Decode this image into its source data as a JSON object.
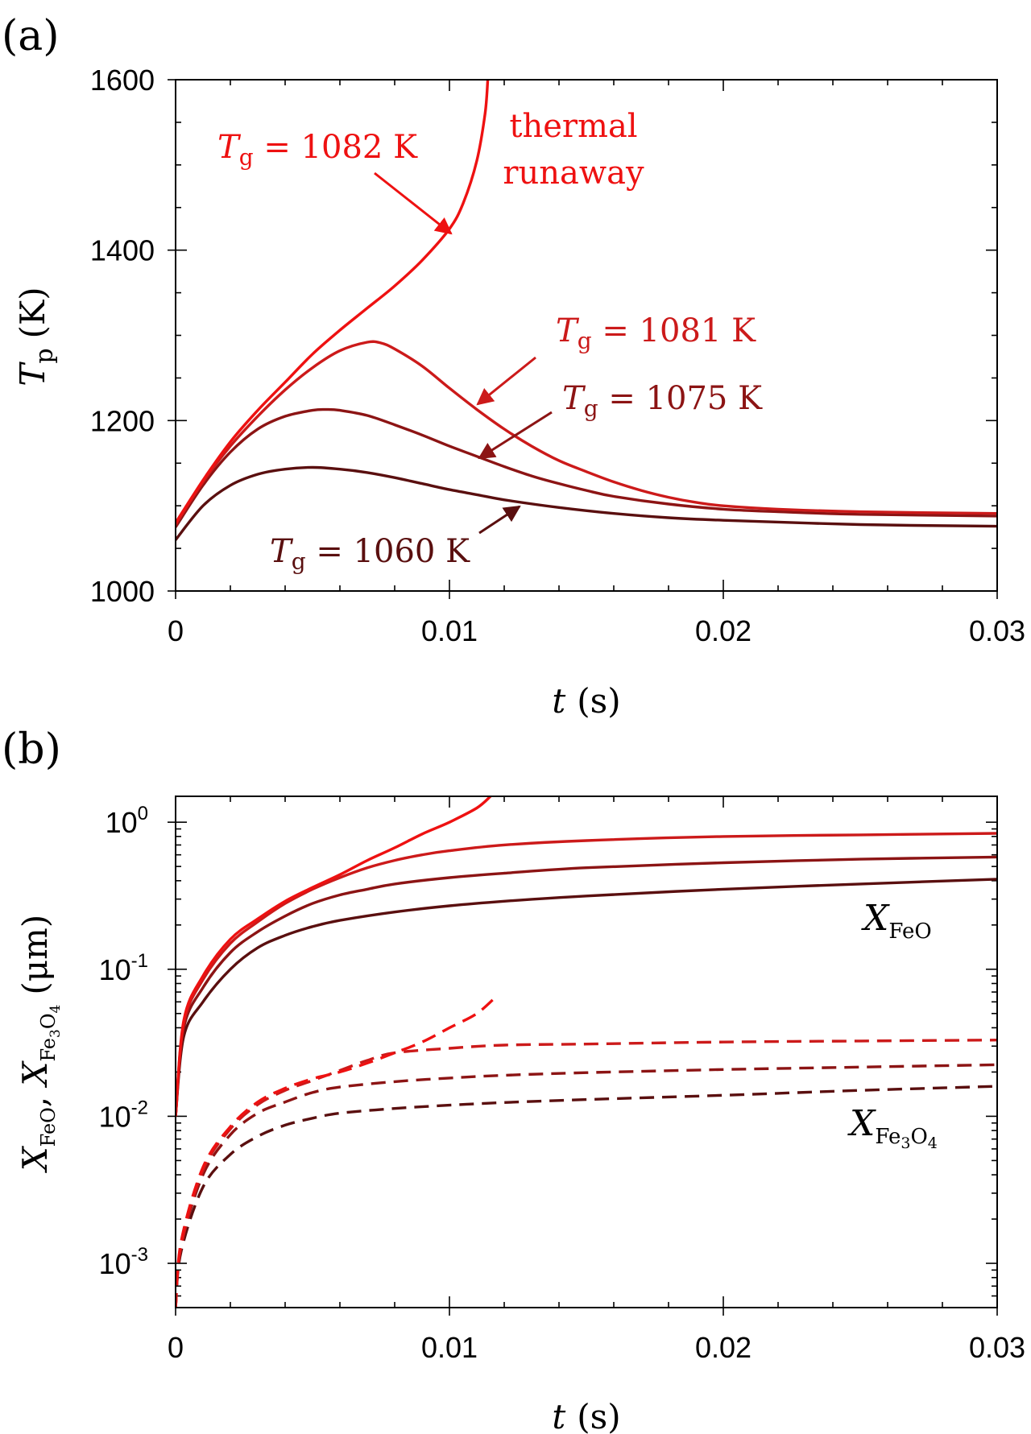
{
  "colors": {
    "Tg_1082": "#ee1111",
    "Tg_1081": "#cc1a1a",
    "Tg_1075": "#8c1414",
    "Tg_1060": "#5a0f0f",
    "axis": "#000000"
  },
  "chart_data": [
    {
      "panel_label": "(a)",
      "type": "line",
      "xlabel": {
        "var": "t",
        "unit": "(s)"
      },
      "ylabel": {
        "var": "T",
        "sub": "p",
        "unit": "(K)"
      },
      "xlim": [
        0,
        0.03
      ],
      "ylim": [
        1000,
        1600
      ],
      "xticks": [
        {
          "v": 0,
          "label": "0"
        },
        {
          "v": 0.01,
          "label": "0.01"
        },
        {
          "v": 0.02,
          "label": "0.02"
        },
        {
          "v": 0.03,
          "label": "0.03"
        }
      ],
      "yticks": [
        {
          "v": 1000,
          "label": "1000"
        },
        {
          "v": 1200,
          "label": "1200"
        },
        {
          "v": 1400,
          "label": "1400"
        },
        {
          "v": 1600,
          "label": "1600"
        }
      ],
      "series": [
        {
          "key": "Tg_1082",
          "points": [
            [
              0,
              1080
            ],
            [
              0.001,
              1130
            ],
            [
              0.002,
              1175
            ],
            [
              0.003,
              1212
            ],
            [
              0.004,
              1245
            ],
            [
              0.005,
              1278
            ],
            [
              0.006,
              1306
            ],
            [
              0.007,
              1332
            ],
            [
              0.008,
              1358
            ],
            [
              0.009,
              1388
            ],
            [
              0.01,
              1425
            ],
            [
              0.0105,
              1455
            ],
            [
              0.011,
              1505
            ],
            [
              0.0113,
              1560
            ],
            [
              0.0114,
              1600
            ]
          ]
        },
        {
          "key": "Tg_1081",
          "points": [
            [
              0,
              1078
            ],
            [
              0.001,
              1128
            ],
            [
              0.002,
              1170
            ],
            [
              0.003,
              1205
            ],
            [
              0.004,
              1236
            ],
            [
              0.005,
              1262
            ],
            [
              0.006,
              1282
            ],
            [
              0.007,
              1292
            ],
            [
              0.0075,
              1291
            ],
            [
              0.008,
              1284
            ],
            [
              0.009,
              1264
            ],
            [
              0.01,
              1238
            ],
            [
              0.011,
              1213
            ],
            [
              0.012,
              1190
            ],
            [
              0.013,
              1170
            ],
            [
              0.014,
              1153
            ],
            [
              0.015,
              1140
            ],
            [
              0.016,
              1128
            ],
            [
              0.017,
              1118
            ],
            [
              0.018,
              1110
            ],
            [
              0.019,
              1104
            ],
            [
              0.02,
              1100
            ],
            [
              0.022,
              1096
            ],
            [
              0.025,
              1093
            ],
            [
              0.03,
              1091
            ]
          ]
        },
        {
          "key": "Tg_1075",
          "points": [
            [
              0,
              1075
            ],
            [
              0.001,
              1124
            ],
            [
              0.002,
              1163
            ],
            [
              0.003,
              1190
            ],
            [
              0.004,
              1205
            ],
            [
              0.005,
              1212
            ],
            [
              0.0055,
              1213
            ],
            [
              0.006,
              1212
            ],
            [
              0.007,
              1206
            ],
            [
              0.008,
              1195
            ],
            [
              0.009,
              1183
            ],
            [
              0.01,
              1170
            ],
            [
              0.011,
              1158
            ],
            [
              0.012,
              1146
            ],
            [
              0.013,
              1135
            ],
            [
              0.014,
              1126
            ],
            [
              0.015,
              1118
            ],
            [
              0.016,
              1111
            ],
            [
              0.018,
              1102
            ],
            [
              0.02,
              1096
            ],
            [
              0.022,
              1093
            ],
            [
              0.025,
              1090
            ],
            [
              0.03,
              1088
            ]
          ]
        },
        {
          "key": "Tg_1060",
          "points": [
            [
              0,
              1060
            ],
            [
              0.001,
              1100
            ],
            [
              0.002,
              1124
            ],
            [
              0.003,
              1137
            ],
            [
              0.004,
              1143
            ],
            [
              0.005,
              1145
            ],
            [
              0.006,
              1143
            ],
            [
              0.007,
              1139
            ],
            [
              0.008,
              1133
            ],
            [
              0.009,
              1126
            ],
            [
              0.01,
              1119
            ],
            [
              0.011,
              1113
            ],
            [
              0.012,
              1107
            ],
            [
              0.014,
              1098
            ],
            [
              0.016,
              1091
            ],
            [
              0.018,
              1086
            ],
            [
              0.02,
              1083
            ],
            [
              0.025,
              1078
            ],
            [
              0.03,
              1076
            ]
          ]
        }
      ],
      "annotations": [
        {
          "key": "Tg_1082",
          "T": "T",
          "sub": "g",
          "rest": " = 1082 K"
        },
        {
          "key": "Tg_1081",
          "T": "T",
          "sub": "g",
          "rest": " = 1081 K"
        },
        {
          "key": "Tg_1075",
          "T": "T",
          "sub": "g",
          "rest": " = 1075 K"
        },
        {
          "key": "Tg_1060",
          "T": "T",
          "sub": "g",
          "rest": " = 1060 K"
        }
      ],
      "runaway_label": [
        "thermal",
        "runaway"
      ]
    },
    {
      "panel_label": "(b)",
      "type": "line",
      "yscale": "log",
      "xlabel": {
        "var": "t",
        "unit": "(s)"
      },
      "ylabel": {
        "a_var": "X",
        "a_sub": "FeO",
        "sep": ", ",
        "b_var": "X",
        "b_sub": "Fe",
        "b_sub_1": "3",
        "b_sub_mid": "O",
        "b_sub_2": "4",
        "unit": "(μm)"
      },
      "xlim": [
        0,
        0.03
      ],
      "ylim": [
        0.0005,
        1.5
      ],
      "xticks": [
        {
          "v": 0,
          "label": "0"
        },
        {
          "v": 0.01,
          "label": "0.01"
        },
        {
          "v": 0.02,
          "label": "0.02"
        },
        {
          "v": 0.03,
          "label": "0.03"
        }
      ],
      "yticks": [
        {
          "v": 1,
          "base": "10",
          "exp": "0"
        },
        {
          "v": 0.1,
          "base": "10",
          "exp": "-1"
        },
        {
          "v": 0.01,
          "base": "10",
          "exp": "-2"
        },
        {
          "v": 0.001,
          "base": "10",
          "exp": "-3"
        }
      ],
      "series": [
        {
          "key": "Tg_1082",
          "name_group": "X_FeO",
          "style": "solid",
          "points": [
            [
              0,
              0.01
            ],
            [
              0.0003,
              0.045
            ],
            [
              0.001,
              0.09
            ],
            [
              0.002,
              0.16
            ],
            [
              0.003,
              0.22
            ],
            [
              0.004,
              0.29
            ],
            [
              0.005,
              0.36
            ],
            [
              0.006,
              0.44
            ],
            [
              0.007,
              0.55
            ],
            [
              0.008,
              0.67
            ],
            [
              0.009,
              0.83
            ],
            [
              0.01,
              1.0
            ],
            [
              0.011,
              1.25
            ],
            [
              0.0115,
              1.5
            ]
          ]
        },
        {
          "key": "Tg_1081",
          "name_group": "X_FeO",
          "style": "solid",
          "points": [
            [
              0,
              0.01
            ],
            [
              0.0003,
              0.043
            ],
            [
              0.001,
              0.085
            ],
            [
              0.002,
              0.15
            ],
            [
              0.003,
              0.21
            ],
            [
              0.004,
              0.28
            ],
            [
              0.005,
              0.35
            ],
            [
              0.006,
              0.42
            ],
            [
              0.007,
              0.49
            ],
            [
              0.008,
              0.55
            ],
            [
              0.009,
              0.6
            ],
            [
              0.01,
              0.64
            ],
            [
              0.012,
              0.7
            ],
            [
              0.015,
              0.75
            ],
            [
              0.02,
              0.8
            ],
            [
              0.025,
              0.82
            ],
            [
              0.03,
              0.84
            ]
          ]
        },
        {
          "key": "Tg_1075",
          "name_group": "X_FeO",
          "style": "solid",
          "points": [
            [
              0,
              0.01
            ],
            [
              0.0003,
              0.04
            ],
            [
              0.001,
              0.075
            ],
            [
              0.002,
              0.13
            ],
            [
              0.003,
              0.18
            ],
            [
              0.004,
              0.23
            ],
            [
              0.005,
              0.28
            ],
            [
              0.006,
              0.32
            ],
            [
              0.007,
              0.35
            ],
            [
              0.008,
              0.38
            ],
            [
              0.01,
              0.42
            ],
            [
              0.012,
              0.45
            ],
            [
              0.015,
              0.49
            ],
            [
              0.02,
              0.53
            ],
            [
              0.025,
              0.56
            ],
            [
              0.03,
              0.58
            ]
          ]
        },
        {
          "key": "Tg_1060",
          "name_group": "X_FeO",
          "style": "solid",
          "points": [
            [
              0,
              0.01
            ],
            [
              0.0003,
              0.035
            ],
            [
              0.001,
              0.06
            ],
            [
              0.002,
              0.1
            ],
            [
              0.003,
              0.14
            ],
            [
              0.004,
              0.17
            ],
            [
              0.005,
              0.195
            ],
            [
              0.006,
              0.215
            ],
            [
              0.008,
              0.245
            ],
            [
              0.01,
              0.27
            ],
            [
              0.012,
              0.29
            ],
            [
              0.015,
              0.315
            ],
            [
              0.02,
              0.35
            ],
            [
              0.025,
              0.38
            ],
            [
              0.03,
              0.41
            ]
          ]
        },
        {
          "key": "Tg_1082",
          "name_group": "X_Fe3O4",
          "style": "dashed",
          "points": [
            [
              0,
              0.0005
            ],
            [
              0.0002,
              0.0014
            ],
            [
              0.001,
              0.0045
            ],
            [
              0.002,
              0.0085
            ],
            [
              0.003,
              0.0125
            ],
            [
              0.004,
              0.0155
            ],
            [
              0.005,
              0.018
            ],
            [
              0.006,
              0.02
            ],
            [
              0.007,
              0.023
            ],
            [
              0.008,
              0.027
            ],
            [
              0.009,
              0.032
            ],
            [
              0.01,
              0.04
            ],
            [
              0.011,
              0.05
            ],
            [
              0.0117,
              0.065
            ]
          ]
        },
        {
          "key": "Tg_1081",
          "name_group": "X_Fe3O4",
          "style": "dashed",
          "points": [
            [
              0,
              0.0005
            ],
            [
              0.0002,
              0.0013
            ],
            [
              0.001,
              0.0043
            ],
            [
              0.002,
              0.0082
            ],
            [
              0.003,
              0.012
            ],
            [
              0.004,
              0.015
            ],
            [
              0.005,
              0.0175
            ],
            [
              0.006,
              0.0205
            ],
            [
              0.007,
              0.024
            ],
            [
              0.008,
              0.027
            ],
            [
              0.01,
              0.029
            ],
            [
              0.012,
              0.0305
            ],
            [
              0.015,
              0.031
            ],
            [
              0.02,
              0.032
            ],
            [
              0.025,
              0.0325
            ],
            [
              0.03,
              0.033
            ]
          ]
        },
        {
          "key": "Tg_1075",
          "name_group": "X_Fe3O4",
          "style": "dashed",
          "points": [
            [
              0,
              0.0005
            ],
            [
              0.0002,
              0.0013
            ],
            [
              0.001,
              0.004
            ],
            [
              0.002,
              0.0075
            ],
            [
              0.003,
              0.0105
            ],
            [
              0.004,
              0.0125
            ],
            [
              0.005,
              0.0145
            ],
            [
              0.006,
              0.0158
            ],
            [
              0.008,
              0.0172
            ],
            [
              0.01,
              0.0182
            ],
            [
              0.012,
              0.019
            ],
            [
              0.015,
              0.0198
            ],
            [
              0.02,
              0.0208
            ],
            [
              0.025,
              0.0216
            ],
            [
              0.03,
              0.0224
            ]
          ]
        },
        {
          "key": "Tg_1060",
          "name_group": "X_Fe3O4",
          "style": "dashed",
          "points": [
            [
              0,
              0.0005
            ],
            [
              0.0002,
              0.0012
            ],
            [
              0.001,
              0.0033
            ],
            [
              0.002,
              0.0055
            ],
            [
              0.003,
              0.0073
            ],
            [
              0.004,
              0.0087
            ],
            [
              0.005,
              0.0097
            ],
            [
              0.006,
              0.0105
            ],
            [
              0.008,
              0.0113
            ],
            [
              0.01,
              0.0119
            ],
            [
              0.012,
              0.0124
            ],
            [
              0.015,
              0.013
            ],
            [
              0.02,
              0.0139
            ],
            [
              0.025,
              0.015
            ],
            [
              0.03,
              0.016
            ]
          ]
        }
      ],
      "labels": {
        "xfeo": {
          "var": "X",
          "sub": "FeO"
        },
        "xfe3o4": {
          "var": "X",
          "sub": "Fe",
          "sub_1": "3",
          "sub_mid": "O",
          "sub_2": "4"
        }
      }
    }
  ]
}
